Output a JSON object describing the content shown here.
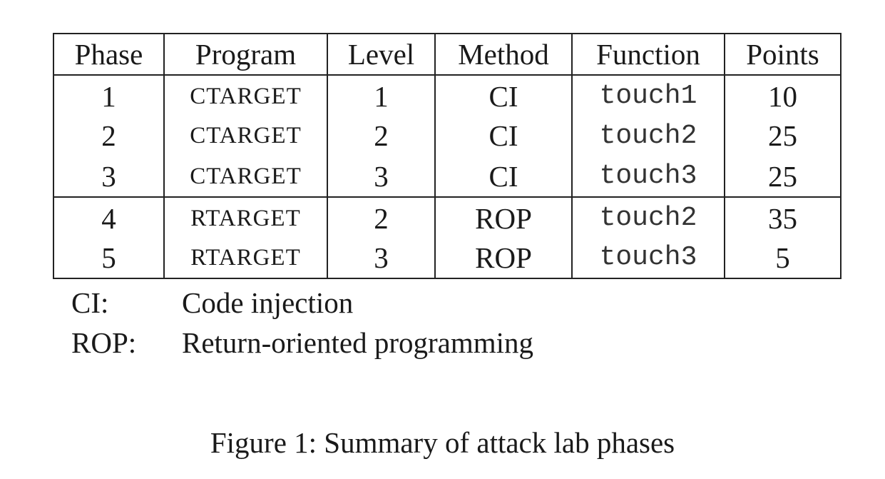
{
  "table": {
    "headers": [
      "Phase",
      "Program",
      "Level",
      "Method",
      "Function",
      "Points"
    ],
    "group_a": [
      {
        "phase": "1",
        "program": "CTARGET",
        "level": "1",
        "method": "CI",
        "function": "touch1",
        "points": "10"
      },
      {
        "phase": "2",
        "program": "CTARGET",
        "level": "2",
        "method": "CI",
        "function": "touch2",
        "points": "25"
      },
      {
        "phase": "3",
        "program": "CTARGET",
        "level": "3",
        "method": "CI",
        "function": "touch3",
        "points": "25"
      }
    ],
    "group_b": [
      {
        "phase": "4",
        "program": "RTARGET",
        "level": "2",
        "method": "ROP",
        "function": "touch2",
        "points": "35"
      },
      {
        "phase": "5",
        "program": "RTARGET",
        "level": "3",
        "method": "ROP",
        "function": "touch3",
        "points": "5"
      }
    ]
  },
  "legend": [
    {
      "key": "CI:",
      "value": "Code injection"
    },
    {
      "key": "ROP:",
      "value": "Return-oriented programming"
    }
  ],
  "caption": "Figure 1: Summary of attack lab phases"
}
